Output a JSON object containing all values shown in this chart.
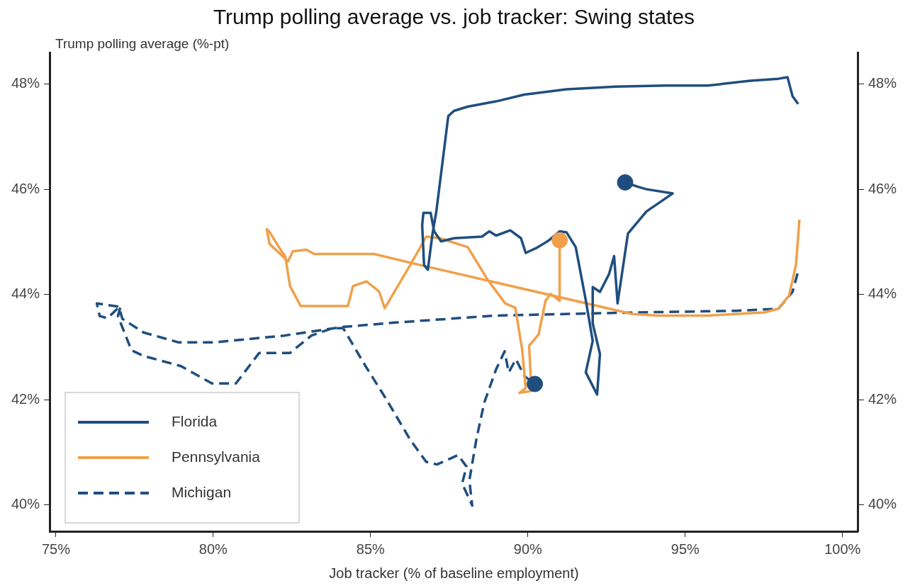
{
  "chart_data": {
    "type": "line",
    "title": "Trump polling average vs. job tracker: Swing states",
    "xlabel": "Job tracker (% of baseline employment)",
    "ylabel": "Trump polling average (%-pt)",
    "xlim": [
      74.8,
      100.5
    ],
    "xticks": [
      {
        "value": 75,
        "label": "75%"
      },
      {
        "value": 80,
        "label": "80%"
      },
      {
        "value": 85,
        "label": "85%"
      },
      {
        "value": 90,
        "label": "90%"
      },
      {
        "value": 95,
        "label": "95%"
      },
      {
        "value": 100,
        "label": "100%"
      }
    ],
    "ylim": [
      39.5,
      48.6
    ],
    "yticks": [
      {
        "value": 40,
        "label": "40%"
      },
      {
        "value": 42,
        "label": "42%"
      },
      {
        "value": 44,
        "label": "44%"
      },
      {
        "value": 46,
        "label": "46%"
      },
      {
        "value": 48,
        "label": "48%"
      }
    ],
    "y2lim": [
      39.5,
      48.6
    ],
    "y2ticks": [
      {
        "value": 40,
        "label": "40%"
      },
      {
        "value": 42,
        "label": "42%"
      },
      {
        "value": 44,
        "label": "44%"
      },
      {
        "value": 46,
        "label": "46%"
      },
      {
        "value": 48,
        "label": "48%"
      }
    ],
    "grid": false,
    "legend": "bottom left",
    "marker": "none",
    "series": [
      {
        "name": "Florida",
        "color": "#1f4e7e",
        "line_style": "solid",
        "x": [
          98.59,
          98.41,
          98.25,
          97.96,
          97.06,
          95.72,
          94.37,
          92.8,
          91.23,
          89.89,
          88.99,
          88.09,
          87.65,
          87.47,
          87.09,
          86.97,
          86.82,
          86.7,
          86.64,
          86.68,
          86.91,
          87.02,
          87.24,
          87.65,
          88.54,
          88.77,
          88.99,
          89.44,
          89.78,
          89.93,
          90.29,
          90.67,
          91.01,
          91.23,
          91.52,
          91.84,
          92.06,
          91.84,
          92.2,
          92.29,
          92.06,
          92.06,
          92.29,
          92.58,
          92.74,
          92.85,
          93.18,
          93.77,
          94.6,
          93.77,
          93.48,
          93.09
        ],
        "values": [
          47.62,
          47.77,
          48.13,
          48.1,
          48.06,
          47.97,
          47.97,
          47.95,
          47.9,
          47.8,
          47.67,
          47.57,
          47.49,
          47.39,
          45.58,
          45.16,
          44.47,
          44.56,
          45.32,
          45.55,
          45.55,
          45.2,
          45.01,
          45.07,
          45.1,
          45.2,
          45.12,
          45.22,
          45.07,
          44.79,
          44.89,
          45.03,
          45.2,
          45.18,
          44.9,
          43.89,
          43.12,
          42.52,
          42.1,
          42.87,
          43.45,
          44.14,
          44.05,
          44.39,
          44.73,
          43.83,
          45.16,
          45.58,
          45.92,
          46.0,
          46.05,
          46.13
        ]
      },
      {
        "name": "Pennsylvania",
        "color": "#f0a04b",
        "line_style": "solid",
        "x": [
          98.63,
          98.52,
          98.3,
          97.96,
          97.51,
          95.72,
          94.15,
          93.32,
          86.43,
          85.11,
          83.21,
          82.96,
          82.53,
          82.38,
          81.79,
          81.7,
          81.79,
          82.13,
          82.29,
          82.44,
          82.78,
          84.04,
          84.28,
          84.44,
          84.87,
          85.27,
          85.45,
          86.28,
          86.77,
          87.2,
          88.09,
          88.7,
          89.28,
          89.6,
          89.82,
          89.93,
          89.73,
          90.11,
          90.04,
          90.34,
          90.56,
          90.72,
          91.01,
          91.01
        ],
        "values": [
          45.42,
          44.56,
          43.98,
          43.73,
          43.66,
          43.6,
          43.6,
          43.63,
          44.58,
          44.77,
          44.77,
          44.85,
          44.82,
          44.63,
          44.96,
          45.24,
          45.19,
          44.86,
          44.72,
          44.16,
          43.78,
          43.78,
          43.78,
          44.16,
          44.25,
          44.06,
          43.74,
          44.58,
          45.1,
          45.07,
          44.9,
          44.3,
          43.83,
          43.75,
          42.94,
          42.22,
          42.13,
          42.17,
          43.03,
          43.24,
          43.88,
          44.01,
          43.88,
          45.03
        ]
      },
      {
        "name": "Michigan",
        "color": "#1f4e7e",
        "line_style": "dashed",
        "x": [
          98.57,
          98.41,
          97.96,
          96.61,
          93.48,
          88.99,
          85.85,
          84.06,
          82.26,
          80.02,
          78.9,
          77.78,
          77.11,
          77.0,
          76.3,
          76.39,
          76.64,
          76.97,
          77.06,
          76.97,
          77.4,
          77.8,
          78.97,
          79.96,
          80.72,
          81.46,
          82.44,
          83.12,
          83.79,
          84.13,
          84.84,
          85.52,
          86.26,
          86.77,
          87.11,
          87.78,
          88.05,
          87.91,
          88.23,
          88.14,
          88.36,
          88.61,
          88.99,
          89.26,
          89.39,
          89.62,
          89.89,
          90.22
        ],
        "values": [
          44.4,
          44.05,
          43.73,
          43.69,
          43.66,
          43.6,
          43.47,
          43.38,
          43.22,
          43.09,
          43.09,
          43.28,
          43.54,
          43.77,
          43.83,
          43.59,
          43.55,
          43.74,
          43.78,
          43.59,
          42.94,
          42.83,
          42.64,
          42.31,
          42.31,
          42.89,
          42.89,
          43.22,
          43.36,
          43.36,
          42.64,
          41.99,
          41.24,
          40.82,
          40.77,
          40.95,
          40.73,
          40.41,
          39.99,
          40.47,
          41.24,
          41.94,
          42.58,
          42.92,
          42.52,
          42.77,
          42.45,
          42.3
        ]
      },
      {
        "type": "scatter",
        "marker": "circle",
        "color": "#1f4e7e",
        "x": [
          93.09
        ],
        "values": [
          46.13
        ]
      },
      {
        "type": "scatter",
        "marker": "circle",
        "color": "#f0a04b",
        "x": [
          91.01
        ],
        "values": [
          45.03
        ]
      },
      {
        "type": "scatter",
        "marker": "circle",
        "color": "#1f4e7e",
        "x": [
          90.22
        ],
        "values": [
          42.3
        ]
      }
    ]
  }
}
